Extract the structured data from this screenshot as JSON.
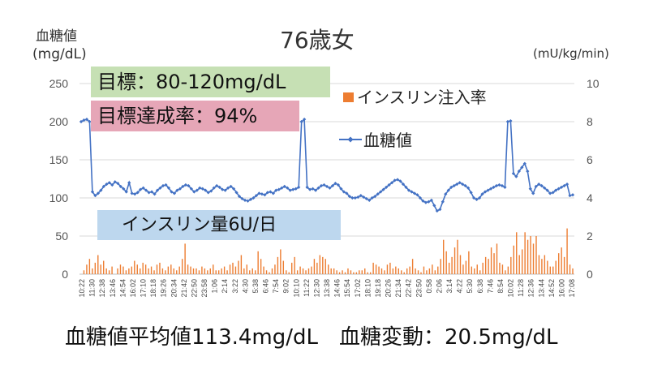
{
  "chart_data": {
    "type": "line",
    "title": "76歳女",
    "ylabel_left": [
      "血糖値",
      "(mg/dL)"
    ],
    "ylabel_right": "(mU/kg/min)",
    "y_left_range": [
      0,
      250
    ],
    "y_left_ticks": [
      "0",
      "50",
      "100",
      "150",
      "200",
      "250"
    ],
    "y_right_range": [
      0,
      10
    ],
    "y_right_ticks": [
      "0",
      "2",
      "4",
      "6",
      "8",
      "10"
    ],
    "x_tick_labels": [
      "10:22",
      "11:30",
      "12:38",
      "13:46",
      "14:54",
      "16:02",
      "17:10",
      "18:18",
      "19:26",
      "20:34",
      "21:42",
      "22:50",
      "23:58",
      "1:06",
      "2:14",
      "3:22",
      "4:30",
      "5:38",
      "6:46",
      "7:54",
      "9:02",
      "10:10",
      "11:22",
      "12:30",
      "13:38",
      "14:46",
      "15:54",
      "17:02",
      "18:10",
      "19:18",
      "20:26",
      "21:34",
      "22:42",
      "23:50",
      "0:58",
      "2:06",
      "3:14",
      "4:22",
      "5:30",
      "6:38",
      "7:46",
      "8:54",
      "10:02",
      "11:28",
      "12:36",
      "13:44",
      "14:52",
      "16:00",
      "17:08"
    ],
    "grid": true,
    "legend": "inside-right",
    "series": [
      {
        "name": "血糖値",
        "axis": "left",
        "color": "#4472C4",
        "marker": "diamond",
        "values": [
          200,
          202,
          203,
          200,
          108,
          103,
          106,
          110,
          115,
          118,
          120,
          117,
          121,
          119,
          115,
          112,
          108,
          120,
          106,
          105,
          107,
          111,
          113,
          110,
          107,
          108,
          105,
          110,
          113,
          116,
          117,
          113,
          108,
          106,
          110,
          112,
          115,
          117,
          116,
          112,
          108,
          110,
          113,
          112,
          110,
          107,
          109,
          113,
          116,
          114,
          111,
          110,
          113,
          115,
          112,
          107,
          102,
          99,
          97,
          96,
          98,
          100,
          103,
          106,
          105,
          104,
          107,
          108,
          106,
          110,
          111,
          113,
          115,
          113,
          110,
          111,
          112,
          114,
          200,
          203,
          114,
          111,
          112,
          110,
          113,
          116,
          117,
          115,
          113,
          116,
          119,
          117,
          112,
          108,
          106,
          102,
          100,
          100,
          101,
          103,
          101,
          99,
          97,
          100,
          102,
          105,
          108,
          111,
          114,
          117,
          120,
          123,
          124,
          122,
          118,
          114,
          110,
          108,
          106,
          104,
          100,
          96,
          94,
          95,
          97,
          90,
          83,
          85,
          95,
          105,
          110,
          114,
          116,
          118,
          120,
          118,
          116,
          113,
          107,
          100,
          98,
          100,
          105,
          108,
          110,
          112,
          114,
          116,
          117,
          116,
          114,
          200,
          201,
          132,
          128,
          135,
          140,
          145,
          135,
          112,
          106,
          115,
          118,
          116,
          113,
          110,
          106,
          107,
          110,
          112,
          114,
          116,
          118,
          103,
          104
        ]
      },
      {
        "name": "インスリン注入率",
        "axis": "right",
        "color": "#ED7D31",
        "type": "bar",
        "values": [
          0,
          0.2,
          0.5,
          0.8,
          0.3,
          0.6,
          1.0,
          0.5,
          0.7,
          0.3,
          0.2,
          0.4,
          0,
          0.3,
          0.5,
          0.4,
          0.2,
          0.3,
          0.4,
          0.7,
          0.5,
          0.3,
          0.6,
          0.5,
          0.3,
          0.4,
          0.2,
          0.5,
          0.6,
          0.3,
          0.2,
          0.4,
          0.5,
          0.3,
          0.2,
          0.4,
          0.8,
          1.6,
          0.5,
          0.4,
          0.3,
          0.3,
          0.2,
          0.4,
          0.3,
          0.2,
          0.3,
          0.5,
          0.2,
          0.2,
          0.3,
          0.4,
          0.2,
          0.5,
          0.6,
          0.4,
          0.7,
          1.0,
          0.3,
          0.5,
          0.2,
          0.3,
          0.2,
          1.2,
          0.8,
          0.4,
          0.2,
          0.1,
          0.3,
          0.5,
          0.9,
          1.3,
          0.7,
          0.2,
          0.1,
          0.6,
          0.9,
          0.2,
          0.4,
          0.3,
          0.2,
          0.3,
          0.4,
          0.8,
          0.6,
          1.0,
          0.9,
          0.8,
          0.5,
          0.3,
          0.3,
          0.2,
          0.1,
          0.2,
          0.1,
          0.3,
          0.2,
          0.1,
          0.1,
          0.2,
          0.2,
          0.3,
          0.1,
          0.1,
          0.6,
          0.5,
          0.4,
          0.3,
          0.2,
          0.5,
          0.6,
          0.3,
          0.4,
          0.3,
          0.2,
          0.1,
          0.3,
          0.4,
          0.8,
          0.3,
          0.2,
          0.1,
          0.4,
          0.2,
          0.3,
          0.5,
          0.2,
          0.4,
          0.8,
          1.8,
          1.2,
          0.6,
          0.9,
          1.4,
          1.8,
          1.0,
          0.5,
          0.7,
          1.2,
          0.4,
          0.3,
          0.5,
          0.2,
          0.6,
          0.9,
          0.8,
          1.4,
          1.1,
          1.6,
          0.6,
          0.5,
          0.2,
          0.4,
          0.9,
          1.5,
          2.2,
          1.0,
          1.3,
          2.2,
          1.8,
          2.0,
          1.6,
          2.0,
          1.0,
          0.8,
          1.0,
          0.7,
          0.4,
          0.4,
          0.7,
          1.1,
          1.4,
          0.9,
          2.4,
          0.5,
          0.3
        ]
      }
    ]
  },
  "boxes": {
    "target": {
      "text": "目標：80-120mg/dL",
      "color": "#C6E0B4"
    },
    "achievement": {
      "text": "目標達成率：94%",
      "color": "#E6A6B7"
    },
    "insulin_dose": {
      "text": "インスリン量6U/日",
      "color": "#BDD7EE"
    }
  },
  "footer": {
    "text": "血糖値平均値113.4mg/dL　血糖変動：20.5mg/dL"
  }
}
